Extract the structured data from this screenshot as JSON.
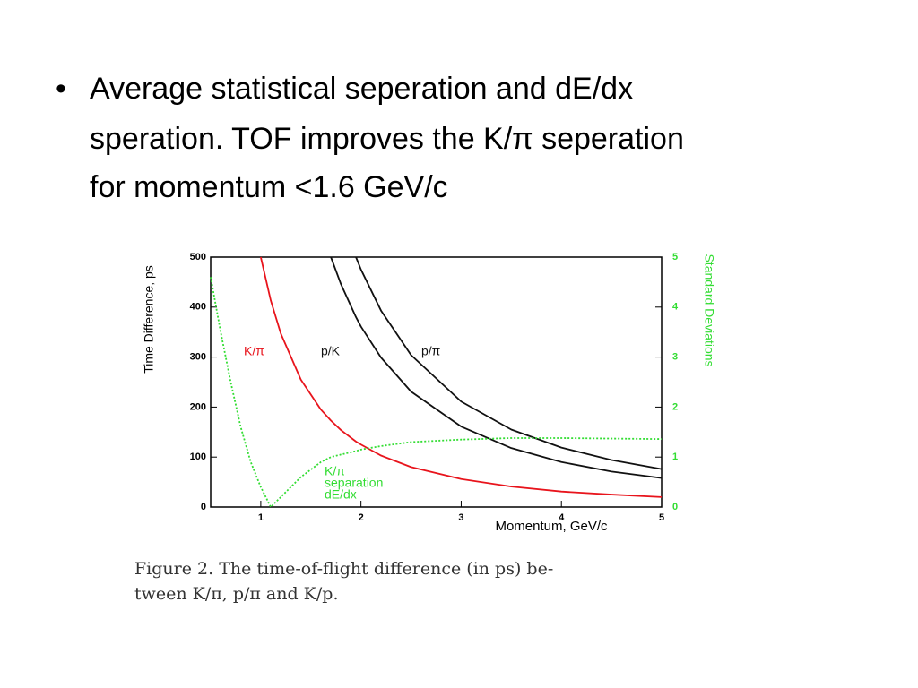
{
  "bullet_lines": [
    "Average statistical seperation and dE/dx",
    "speration. TOF improves the K/π seperation",
    "for momentum <1.6 GeV/c"
  ],
  "chart_data": {
    "type": "line",
    "xlabel": "Momentum, GeV/c",
    "ylabel": "Time Difference, ps",
    "y2label": "Standard Deviations",
    "x": [
      0.5,
      0.6,
      0.7,
      0.8,
      0.9,
      1.0,
      1.1,
      1.2,
      1.4,
      1.6,
      1.7,
      1.8,
      1.95,
      2.0,
      2.2,
      2.5,
      3.0,
      3.5,
      4.0,
      4.5,
      5.0
    ],
    "series": [
      {
        "name": "K/π",
        "color": "#e8141c",
        "values": [
          null,
          null,
          null,
          null,
          null,
          500,
          413,
          347,
          255,
          195,
          173,
          154,
          131,
          125,
          103,
          80,
          56,
          41,
          31,
          25,
          20
        ]
      },
      {
        "name": "p/K",
        "color": "#111111",
        "values": [
          null,
          null,
          null,
          null,
          null,
          null,
          null,
          null,
          null,
          null,
          500,
          446,
          380,
          361,
          299,
          231,
          161,
          118,
          90,
          71,
          58
        ]
      },
      {
        "name": "p/π",
        "color": "#111111",
        "values": [
          null,
          null,
          null,
          null,
          null,
          null,
          null,
          null,
          null,
          null,
          null,
          null,
          500,
          475,
          393,
          304,
          211,
          155,
          119,
          94,
          76
        ]
      },
      {
        "name": "K/π separation dE/dx",
        "color": "#33dd33",
        "axis": "y2",
        "values": [
          4.6,
          3.5,
          2.5,
          1.6,
          0.9,
          0.4,
          0.0,
          0.2,
          0.6,
          0.9,
          1.0,
          1.05,
          1.12,
          1.15,
          1.22,
          1.3,
          1.35,
          1.38,
          1.38,
          1.37,
          1.36
        ]
      }
    ],
    "annotations": [
      "K/π",
      "p/K",
      "p/π",
      "K/π",
      "separation",
      "dE/dx"
    ],
    "xlim": [
      0.5,
      5
    ],
    "xticks": [
      1,
      2,
      3,
      4,
      5
    ],
    "ylim": [
      0,
      500
    ],
    "yticks": [
      0,
      100,
      200,
      300,
      400,
      500
    ],
    "y2lim": [
      0,
      5
    ],
    "y2ticks": [
      0,
      1,
      2,
      3,
      4,
      5
    ],
    "grid": false
  },
  "caption_lines": [
    "Figure 2. The time-of-flight difference (in ps) be-",
    "tween K/π, p/π and K/p."
  ]
}
